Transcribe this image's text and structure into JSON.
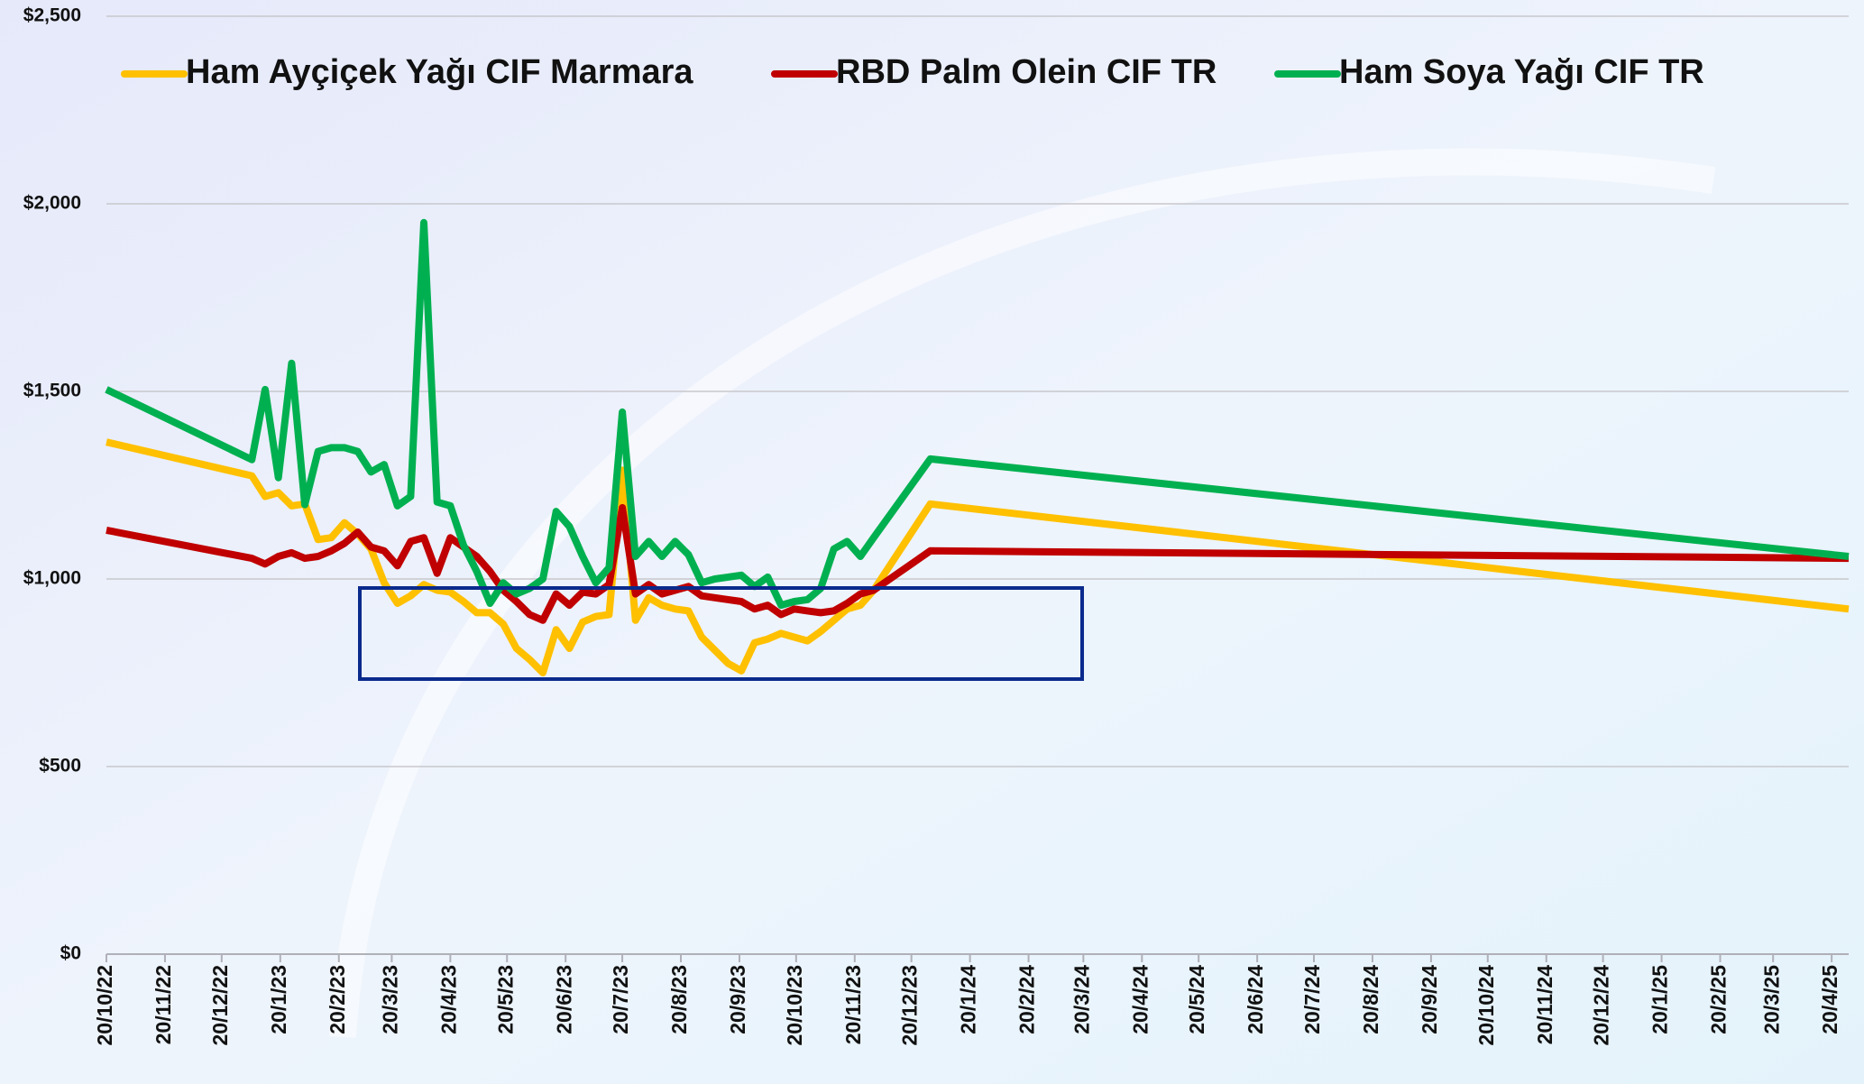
{
  "chart_data": {
    "type": "line",
    "x": [
      "2022-10-20",
      "2023-01-05",
      "2023-01-12",
      "2023-01-19",
      "2023-01-26",
      "2023-02-02",
      "2023-02-09",
      "2023-02-16",
      "2023-02-23",
      "2023-03-02",
      "2023-03-09",
      "2023-03-16",
      "2023-03-23",
      "2023-03-30",
      "2023-04-06",
      "2023-04-13",
      "2023-04-20",
      "2023-04-27",
      "2023-05-04",
      "2023-05-11",
      "2023-05-18",
      "2023-05-25",
      "2023-06-01",
      "2023-06-08",
      "2023-06-15",
      "2023-06-22",
      "2023-06-29",
      "2023-07-06",
      "2023-07-13",
      "2023-07-20",
      "2023-07-27",
      "2023-08-03",
      "2023-08-10",
      "2023-08-17",
      "2023-08-24",
      "2023-08-31",
      "2023-09-07",
      "2023-09-14",
      "2023-09-21",
      "2023-09-28",
      "2023-10-05",
      "2023-10-12",
      "2023-10-19",
      "2023-10-26",
      "2023-11-02",
      "2023-11-09",
      "2023-11-16",
      "2023-11-23",
      "2023-11-30",
      "2023-12-30",
      "2025-04-29"
    ],
    "series": [
      {
        "name": "Ham Ayçiçek Yağı CIF Marmara",
        "color": "#ffc000",
        "values": [
          1365,
          1275,
          1220,
          1230,
          1195,
          1200,
          1105,
          1110,
          1150,
          1120,
          1080,
          990,
          935,
          955,
          985,
          970,
          965,
          940,
          910,
          910,
          880,
          815,
          785,
          750,
          865,
          815,
          885,
          900,
          905,
          1290,
          890,
          950,
          930,
          920,
          915,
          845,
          810,
          775,
          755,
          830,
          840,
          855,
          845,
          835,
          860,
          890,
          920,
          930,
          970,
          1200,
          920
        ]
      },
      {
        "name": "RBD Palm Olein CIF TR",
        "color": "#c00000",
        "values": [
          1130,
          1055,
          1040,
          1060,
          1070,
          1055,
          1060,
          1075,
          1095,
          1125,
          1085,
          1075,
          1035,
          1100,
          1110,
          1015,
          1110,
          1085,
          1060,
          1020,
          970,
          940,
          905,
          890,
          960,
          930,
          965,
          960,
          985,
          1190,
          960,
          985,
          960,
          970,
          980,
          955,
          950,
          945,
          940,
          920,
          930,
          905,
          920,
          915,
          910,
          915,
          935,
          960,
          970,
          1075,
          1055
        ]
      },
      {
        "name": "Ham Soya Yağı CIF TR",
        "color": "#00b050",
        "values": [
          1505,
          1318,
          1505,
          1270,
          1575,
          1198,
          1340,
          1350,
          1350,
          1340,
          1285,
          1305,
          1195,
          1220,
          1950,
          1205,
          1195,
          1090,
          1020,
          935,
          990,
          960,
          975,
          1000,
          1180,
          1140,
          1060,
          990,
          1030,
          1445,
          1060,
          1100,
          1060,
          1100,
          1065,
          990,
          1000,
          1005,
          1010,
          980,
          1005,
          930,
          940,
          945,
          975,
          1080,
          1100,
          1060,
          1110,
          1320,
          1060
        ]
      }
    ],
    "xlim": [
      "2022-10-20",
      "2025-04-29"
    ],
    "xticks": [
      {
        "value": "2022-10-20",
        "label": "20/10/22"
      },
      {
        "value": "2022-11-20",
        "label": "20/11/22"
      },
      {
        "value": "2022-12-20",
        "label": "20/12/22"
      },
      {
        "value": "2023-01-20",
        "label": "20/1/23"
      },
      {
        "value": "2023-02-20",
        "label": "20/2/23"
      },
      {
        "value": "2023-03-20",
        "label": "20/3/23"
      },
      {
        "value": "2023-04-20",
        "label": "20/4/23"
      },
      {
        "value": "2023-05-20",
        "label": "20/5/23"
      },
      {
        "value": "2023-06-20",
        "label": "20/6/23"
      },
      {
        "value": "2023-07-20",
        "label": "20/7/23"
      },
      {
        "value": "2023-08-20",
        "label": "20/8/23"
      },
      {
        "value": "2023-09-20",
        "label": "20/9/23"
      },
      {
        "value": "2023-10-20",
        "label": "20/10/23"
      },
      {
        "value": "2023-11-20",
        "label": "20/11/23"
      },
      {
        "value": "2023-12-20",
        "label": "20/12/23"
      },
      {
        "value": "2024-01-20",
        "label": "20/1/24"
      },
      {
        "value": "2024-02-20",
        "label": "20/2/24"
      },
      {
        "value": "2024-03-20",
        "label": "20/3/24"
      },
      {
        "value": "2024-04-20",
        "label": "20/4/24"
      },
      {
        "value": "2024-05-20",
        "label": "20/5/24"
      },
      {
        "value": "2024-06-20",
        "label": "20/6/24"
      },
      {
        "value": "2024-07-20",
        "label": "20/7/24"
      },
      {
        "value": "2024-08-20",
        "label": "20/8/24"
      },
      {
        "value": "2024-09-20",
        "label": "20/9/24"
      },
      {
        "value": "2024-10-20",
        "label": "20/10/24"
      },
      {
        "value": "2024-11-20",
        "label": "20/11/24"
      },
      {
        "value": "2024-12-20",
        "label": "20/12/24"
      },
      {
        "value": "2025-01-20",
        "label": "20/1/25"
      },
      {
        "value": "2025-02-20",
        "label": "20/2/25"
      },
      {
        "value": "2025-03-20",
        "label": "20/3/25"
      },
      {
        "value": "2025-04-20",
        "label": "20/4/25"
      }
    ],
    "ylim": [
      0,
      2500
    ],
    "yticks": [
      {
        "value": 0,
        "label": "$0"
      },
      {
        "value": 500,
        "label": "$500"
      },
      {
        "value": 1000,
        "label": "$1,000"
      },
      {
        "value": 1500,
        "label": "$1,500"
      },
      {
        "value": 2000,
        "label": "$2,000"
      },
      {
        "value": 2500,
        "label": "$2,500"
      }
    ],
    "grid": true,
    "legend": "top"
  }
}
